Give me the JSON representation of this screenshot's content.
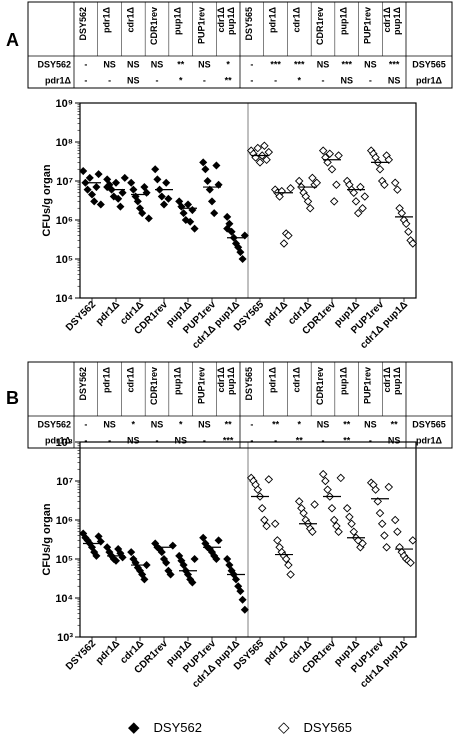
{
  "panels": [
    {
      "letter": "A",
      "table": {
        "columns": [
          "DSY562",
          "pdr1Δ",
          "cdr1Δ",
          "CDR1rev",
          "pup1Δ",
          "PUP1rev",
          "cdr1Δ pup1Δ",
          "DSY565",
          "pdr1Δ",
          "cdr1Δ",
          "CDR1rev",
          "pup1Δ",
          "PUP1rev",
          "cdr1Δ pup1Δ"
        ],
        "rows": [
          {
            "label": "DSY562",
            "cells": [
              "-",
              "NS",
              "NS",
              "NS",
              "**",
              "NS",
              "*",
              "-",
              "***",
              "***",
              "NS",
              "***",
              "NS",
              "***"
            ],
            "right_label": "DSY565"
          },
          {
            "label": "pdr1Δ",
            "cells": [
              "-",
              "-",
              "NS",
              "-",
              "*",
              "-",
              "**",
              "-",
              "-",
              "*",
              "-",
              "NS",
              "-",
              "NS"
            ],
            "right_label": "pdr1Δ"
          }
        ]
      },
      "chart_data": {
        "type": "scatter",
        "ylabel": "CFUs/g organ",
        "yscale": "log",
        "ylim": [
          10000,
          1000000000
        ],
        "yticks": [
          "10⁴",
          "10⁵",
          "10⁶",
          "10⁷",
          "10⁸",
          "10⁹"
        ],
        "categories": [
          "DSY562",
          "pdr1Δ",
          "cdr1Δ",
          "CDR1rev",
          "pup1Δ",
          "PUP1rev",
          "cdr1Δ pup1Δ",
          "DSY565",
          "pdr1Δ",
          "cdr1Δ",
          "CDR1rev",
          "pup1Δ",
          "PUP1rev",
          "cdr1Δ pup1Δ"
        ],
        "series": [
          {
            "group": "DSY562",
            "category_indices": [
              0,
              1,
              2,
              3,
              4,
              5,
              6
            ],
            "points": [
              [
                18000000,
                9000000,
                6000000,
                12000000,
                4500000,
                3000000,
                7000000,
                15000000,
                2500000
              ],
              [
                11000000,
                8000000,
                6000000,
                4000000,
                9000000,
                3500000,
                2200000,
                5000000,
                12000000,
                7000000
              ],
              [
                9000000,
                6000000,
                4000000,
                3000000,
                2000000,
                1500000,
                7000000,
                5000000,
                1100000
              ],
              [
                20000000,
                11000000,
                6000000,
                4000000,
                2500000,
                9000000,
                3500000
              ],
              [
                3000000,
                2200000,
                1500000,
                1000000,
                2500000,
                900000,
                1800000,
                600000
              ],
              [
                30000000,
                20000000,
                10000000,
                6000000,
                3000000,
                1500000,
                25000000,
                8000000
              ],
              [
                1200000,
                800000,
                500000,
                350000,
                250000,
                200000,
                150000,
                100000,
                400000,
                600000
              ]
            ],
            "medians": [
              9000000,
              6000000,
              4500000,
              6000000,
              2000000,
              7000000,
              350000
            ]
          },
          {
            "group": "DSY565",
            "category_indices": [
              7,
              8,
              9,
              10,
              11,
              12,
              13
            ],
            "points": [
              [
                60000000,
                50000000,
                40000000,
                70000000,
                30000000,
                45000000,
                80000000,
                35000000,
                55000000
              ],
              [
                6000000,
                5000000,
                4000000,
                5500000,
                250000,
                450000,
                400000,
                6500000
              ],
              [
                10000000,
                7000000,
                5000000,
                4000000,
                3000000,
                2000000,
                12000000,
                8000000,
                9000000
              ],
              [
                60000000,
                40000000,
                30000000,
                50000000,
                20000000,
                3000000,
                8000000,
                45000000
              ],
              [
                10000000,
                8000000,
                6000000,
                5000000,
                3000000,
                1500000,
                7000000,
                2000000,
                4000000
              ],
              [
                60000000,
                50000000,
                40000000,
                30000000,
                20000000,
                10000000,
                8000000,
                45000000,
                35000000
              ],
              [
                9000000,
                6000000,
                2000000,
                1500000,
                1000000,
                800000,
                500000,
                300000,
                250000
              ]
            ],
            "medians": [
              45000000,
              5000000,
              7000000,
              35000000,
              6000000,
              30000000,
              1200000
            ]
          }
        ]
      }
    },
    {
      "letter": "B",
      "table": {
        "columns": [
          "DSY562",
          "pdr1Δ",
          "cdr1Δ",
          "CDR1rev",
          "pup1Δ",
          "PUP1rev",
          "cdr1Δ pup1Δ",
          "DSY565",
          "pdr1Δ",
          "cdr1Δ",
          "CDR1rev",
          "pup1Δ",
          "PUP1rev",
          "cdr1Δ pup1Δ"
        ],
        "rows": [
          {
            "label": "DSY562",
            "cells": [
              "-",
              "NS",
              "*",
              "NS",
              "*",
              "NS",
              "**",
              "-",
              "**",
              "*",
              "NS",
              "**",
              "NS",
              "**"
            ],
            "right_label": "DSY565"
          },
          {
            "label": "pdr1Δ",
            "cells": [
              "-",
              "-",
              "NS",
              "-",
              "NS",
              "-",
              "***",
              "-",
              "-",
              "**",
              "-",
              "**",
              "-",
              "NS"
            ],
            "right_label": "pdr1Δ"
          }
        ]
      },
      "chart_data": {
        "type": "scatter",
        "ylabel": "CFUs/g organ",
        "yscale": "log",
        "ylim": [
          1000,
          100000000
        ],
        "yticks": [
          "10³",
          "10⁴",
          "10⁵",
          "10⁶",
          "10⁷",
          "10⁸"
        ],
        "categories": [
          "DSY562",
          "pdr1Δ",
          "cdr1Δ",
          "CDR1rev",
          "pup1Δ",
          "PUP1rev",
          "cdr1Δ pup1Δ",
          "DSY565",
          "pdr1Δ",
          "cdr1Δ",
          "CDR1rev",
          "pup1Δ",
          "PUP1rev",
          "cdr1Δ pup1Δ"
        ],
        "series": [
          {
            "group": "DSY562",
            "category_indices": [
              0,
              1,
              2,
              3,
              4,
              5,
              6
            ],
            "points": [
              [
                450000,
                350000,
                300000,
                250000,
                200000,
                150000,
                120000,
                380000,
                280000
              ],
              [
                200000,
                150000,
                120000,
                100000,
                90000,
                180000,
                140000,
                110000
              ],
              [
                150000,
                100000,
                80000,
                60000,
                50000,
                40000,
                30000,
                70000
              ],
              [
                250000,
                200000,
                180000,
                150000,
                100000,
                80000,
                50000,
                40000,
                220000
              ],
              [
                120000,
                90000,
                70000,
                50000,
                40000,
                30000,
                25000,
                100000
              ],
              [
                350000,
                250000,
                200000,
                180000,
                150000,
                120000,
                100000,
                300000
              ],
              [
                100000,
                70000,
                50000,
                40000,
                30000,
                20000,
                15000,
                9000,
                5000
              ]
            ],
            "medians": [
              250000,
              120000,
              70000,
              200000,
              50000,
              200000,
              40000
            ]
          },
          {
            "group": "DSY565",
            "category_indices": [
              7,
              8,
              9,
              10,
              11,
              12,
              13
            ],
            "points": [
              [
                12000000,
                10000000,
                8000000,
                6000000,
                4000000,
                2000000,
                1000000,
                700000,
                11000000
              ],
              [
                800000,
                300000,
                200000,
                150000,
                120000,
                100000,
                70000,
                40000
              ],
              [
                3000000,
                2000000,
                1500000,
                1000000,
                800000,
                600000,
                500000,
                2500000
              ],
              [
                15000000,
                10000000,
                6000000,
                4000000,
                2000000,
                1000000,
                700000,
                500000,
                12000000
              ],
              [
                2000000,
                1200000,
                800000,
                500000,
                350000,
                300000,
                200000,
                250000
              ],
              [
                9000000,
                8000000,
                6000000,
                3000000,
                1500000,
                800000,
                400000,
                200000,
                7000000
              ],
              [
                1000000,
                500000,
                200000,
                150000,
                120000,
                100000,
                90000,
                80000,
                300000
              ]
            ],
            "medians": [
              4000000,
              130000,
              800000,
              4000000,
              350000,
              3500000,
              180000
            ]
          }
        ]
      }
    }
  ],
  "legend": [
    {
      "symbol": "◆",
      "label": "DSY562"
    },
    {
      "symbol": "◇",
      "label": "DSY565"
    }
  ]
}
